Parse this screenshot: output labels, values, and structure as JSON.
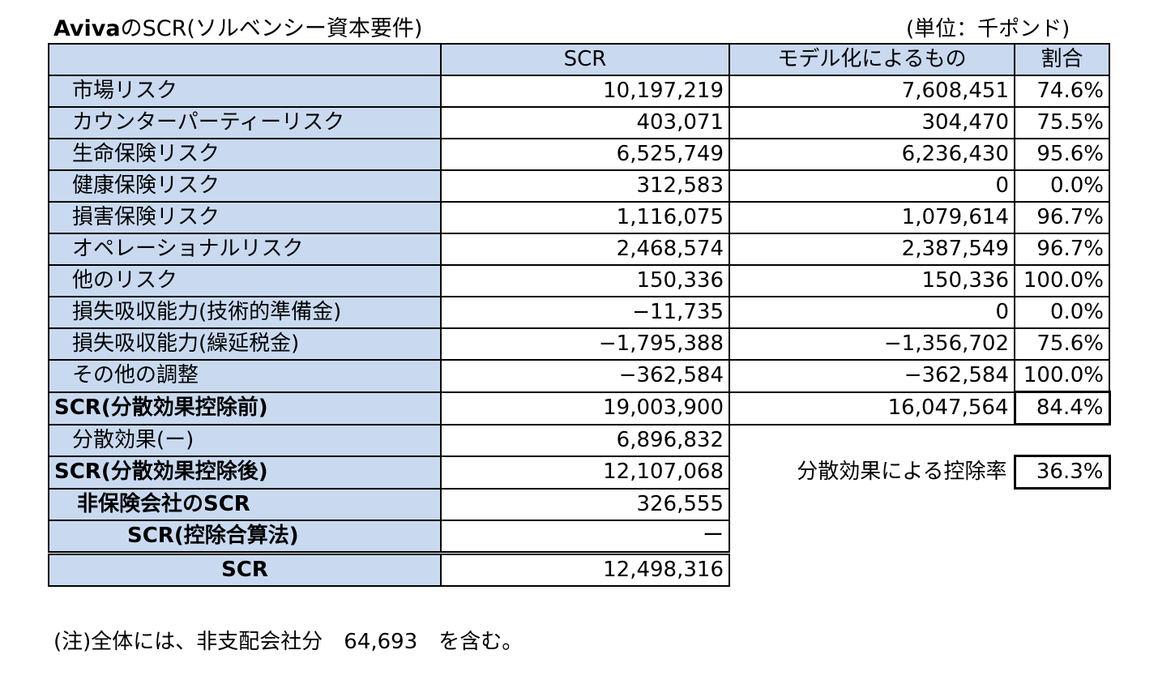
{
  "title": {
    "bold_part": "Aviva",
    "rest": "のSCR(ソルベンシー資本要件)"
  },
  "unit": "(単位：千ポンド)",
  "columns": {
    "blank": "",
    "scr": "SCR",
    "model": "モデル化によるもの",
    "ratio": "割合"
  },
  "rows": [
    {
      "label": "市場リスク",
      "scr": "10,197,219",
      "model": "7,608,451",
      "ratio": "74.6%"
    },
    {
      "label": "カウンターパーティーリスク",
      "scr": "403,071",
      "model": "304,470",
      "ratio": "75.5%"
    },
    {
      "label": "生命保険リスク",
      "scr": "6,525,749",
      "model": "6,236,430",
      "ratio": "95.6%"
    },
    {
      "label": "健康保険リスク",
      "scr": "312,583",
      "model": "0",
      "ratio": "0.0%"
    },
    {
      "label": "損害保険リスク",
      "scr": "1,116,075",
      "model": "1,079,614",
      "ratio": "96.7%"
    },
    {
      "label": "オペレーショナルリスク",
      "scr": "2,468,574",
      "model": "2,387,549",
      "ratio": "96.7%"
    },
    {
      "label": "他のリスク",
      "scr": "150,336",
      "model": "150,336",
      "ratio": "100.0%"
    },
    {
      "label": "損失吸収能力(技術的準備金)",
      "scr": "−11,735",
      "model": "0",
      "ratio": "0.0%"
    },
    {
      "label": "損失吸収能力(繰延税金)",
      "scr": "−1,795,388",
      "model": "−1,356,702",
      "ratio": "75.6%"
    },
    {
      "label": "その他の調整",
      "scr": "−362,584",
      "model": "−362,584",
      "ratio": "100.0%"
    }
  ],
  "before": {
    "label": "SCR(分散効果控除前)",
    "scr": "19,003,900",
    "model": "16,047,564",
    "ratio": "84.4%"
  },
  "diversification": {
    "label": "分散効果(ー)",
    "scr": "6,896,832"
  },
  "after": {
    "label": "SCR(分散効果控除後)",
    "scr": "12,107,068",
    "rate_label": "分散効果による控除率",
    "rate": "36.3%"
  },
  "non_insurance": {
    "label": "非保険会社のSCR",
    "scr": "326,555"
  },
  "deduction": {
    "label": "SCR(控除合算法)",
    "scr": "ー"
  },
  "total": {
    "label": "SCR",
    "scr": "12,498,316"
  },
  "note": "(注)全体には、非支配会社分　64,693　を含む。"
}
